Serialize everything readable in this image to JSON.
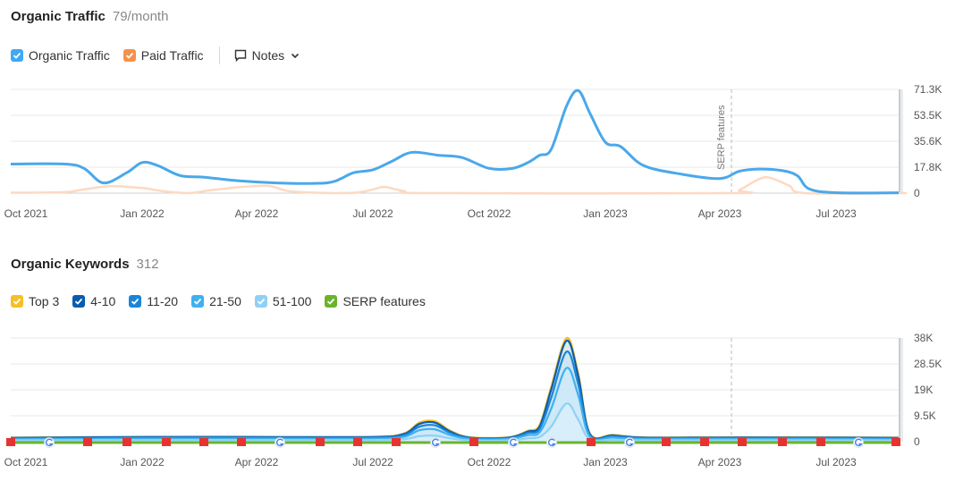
{
  "traffic": {
    "title": "Organic Traffic",
    "value": "79/month",
    "legend": [
      {
        "label": "Organic Traffic",
        "color": "#3fa9f5"
      },
      {
        "label": "Paid Traffic",
        "color": "#f7904a"
      }
    ],
    "notes_label": "Notes"
  },
  "keywords": {
    "title": "Organic Keywords",
    "value": "312",
    "legend": [
      {
        "label": "Top 3",
        "color": "#f6bf26"
      },
      {
        "label": "4-10",
        "color": "#0a5cad"
      },
      {
        "label": "11-20",
        "color": "#1a85d8"
      },
      {
        "label": "21-50",
        "color": "#3fb0f0"
      },
      {
        "label": "51-100",
        "color": "#8fd1f6"
      },
      {
        "label": "SERP features",
        "color": "#6ab42d"
      }
    ]
  },
  "chart_data": [
    {
      "type": "line",
      "title": "Organic Traffic",
      "x_ticks": [
        "Oct 2021",
        "Jan 2022",
        "Apr 2022",
        "Jul 2022",
        "Oct 2022",
        "Jan 2023",
        "Apr 2023",
        "Jul 2023"
      ],
      "y_ticks": [
        "71.3K",
        "53.5K",
        "35.6K",
        "17.8K",
        "0"
      ],
      "ylim": [
        0,
        71300
      ],
      "annotation": {
        "label": "SERP features",
        "x": 18.3
      },
      "series": [
        {
          "name": "Organic Traffic",
          "color": "#4aa8ea",
          "points": [
            [
              0,
              20000
            ],
            [
              1,
              20000
            ],
            [
              1.5,
              17000
            ],
            [
              2,
              7000
            ],
            [
              2.6,
              14000
            ],
            [
              3,
              21000
            ],
            [
              3.4,
              19000
            ],
            [
              4,
              12000
            ],
            [
              4.6,
              11000
            ],
            [
              5.5,
              8500
            ],
            [
              6.5,
              7000
            ],
            [
              7.5,
              6700
            ],
            [
              8,
              8000
            ],
            [
              8.5,
              14000
            ],
            [
              9,
              16000
            ],
            [
              9.5,
              22000
            ],
            [
              10,
              28000
            ],
            [
              10.7,
              26000
            ],
            [
              11.3,
              24500
            ],
            [
              12,
              17000
            ],
            [
              12.6,
              17000
            ],
            [
              13,
              21000
            ],
            [
              13.3,
              26000
            ],
            [
              13.6,
              30000
            ],
            [
              14,
              60000
            ],
            [
              14.3,
              70500
            ],
            [
              14.6,
              55000
            ],
            [
              15,
              35000
            ],
            [
              15.4,
              32000
            ],
            [
              16,
              19000
            ],
            [
              17,
              13000
            ],
            [
              18,
              10000
            ],
            [
              18.5,
              15000
            ],
            [
              19,
              16500
            ],
            [
              19.6,
              15500
            ],
            [
              20,
              12000
            ],
            [
              20.3,
              3000
            ],
            [
              21,
              300
            ],
            [
              23,
              200
            ]
          ]
        },
        {
          "name": "Paid Traffic",
          "color": "#fdd9c2",
          "points": [
            [
              0,
              300
            ],
            [
              1,
              700
            ],
            [
              1.6,
              3000
            ],
            [
              2.2,
              4800
            ],
            [
              3,
              3500
            ],
            [
              3.5,
              1500
            ],
            [
              4.2,
              0
            ],
            [
              4.8,
              2000
            ],
            [
              5.6,
              4200
            ],
            [
              6.3,
              5000
            ],
            [
              6.8,
              1500
            ],
            [
              7.5,
              300
            ],
            [
              8.5,
              200
            ],
            [
              9,
              2500
            ],
            [
              9.3,
              4200
            ],
            [
              9.8,
              1500
            ],
            [
              10.5,
              0
            ],
            [
              23,
              0
            ],
            [
              18.2,
              0
            ],
            [
              18.5,
              2000
            ],
            [
              19,
              9500
            ],
            [
              19.3,
              10500
            ],
            [
              19.8,
              5000
            ],
            [
              20.2,
              0
            ],
            [
              23,
              0
            ]
          ]
        }
      ]
    },
    {
      "type": "area",
      "title": "Organic Keywords",
      "x_ticks": [
        "Oct 2021",
        "Jan 2022",
        "Apr 2022",
        "Jul 2022",
        "Oct 2022",
        "Jan 2023",
        "Apr 2023",
        "Jul 2023"
      ],
      "y_ticks": [
        "38K",
        "28.5K",
        "19K",
        "9.5K",
        "0"
      ],
      "ylim": [
        0,
        38000
      ],
      "series": [
        {
          "name": "Top 3",
          "color": "#f6bf26",
          "points": [
            [
              0,
              1500
            ],
            [
              3,
              1800
            ],
            [
              6,
              1800
            ],
            [
              9,
              1800
            ],
            [
              9.8,
              3000
            ],
            [
              10.2,
              7000
            ],
            [
              10.6,
              7500
            ],
            [
              11,
              4000
            ],
            [
              11.5,
              1600
            ],
            [
              12.5,
              1600
            ],
            [
              13,
              4000
            ],
            [
              13.3,
              6000
            ],
            [
              13.6,
              20000
            ],
            [
              14,
              38000
            ],
            [
              14.3,
              25000
            ],
            [
              14.6,
              3000
            ],
            [
              15.2,
              2500
            ],
            [
              16,
              1600
            ],
            [
              18,
              1600
            ],
            [
              20,
              1600
            ],
            [
              23,
              1500
            ]
          ]
        },
        {
          "name": "4-10",
          "color": "#0a5cad",
          "points": [
            [
              0,
              1400
            ],
            [
              3,
              1700
            ],
            [
              6,
              1700
            ],
            [
              9,
              1700
            ],
            [
              9.8,
              2800
            ],
            [
              10.2,
              6500
            ],
            [
              10.6,
              7000
            ],
            [
              11,
              3700
            ],
            [
              11.5,
              1500
            ],
            [
              12.5,
              1500
            ],
            [
              13,
              3700
            ],
            [
              13.3,
              5500
            ],
            [
              13.6,
              19000
            ],
            [
              14,
              37000
            ],
            [
              14.3,
              24000
            ],
            [
              14.6,
              2800
            ],
            [
              15.2,
              2300
            ],
            [
              16,
              1500
            ],
            [
              18,
              1500
            ],
            [
              20,
              1500
            ],
            [
              23,
              1400
            ]
          ]
        },
        {
          "name": "11-20",
          "color": "#1a85d8",
          "points": [
            [
              0,
              1200
            ],
            [
              3,
              1500
            ],
            [
              6,
              1500
            ],
            [
              9,
              1500
            ],
            [
              9.8,
              2400
            ],
            [
              10.2,
              5500
            ],
            [
              10.6,
              6000
            ],
            [
              11,
              3200
            ],
            [
              11.5,
              1300
            ],
            [
              12.5,
              1300
            ],
            [
              13,
              3200
            ],
            [
              13.3,
              4600
            ],
            [
              13.6,
              16000
            ],
            [
              14,
              33000
            ],
            [
              14.3,
              21000
            ],
            [
              14.6,
              2400
            ],
            [
              15.2,
              2000
            ],
            [
              16,
              1300
            ],
            [
              18,
              1300
            ],
            [
              20,
              1300
            ],
            [
              23,
              1200
            ]
          ]
        },
        {
          "name": "21-50",
          "color": "#3fb0f0",
          "points": [
            [
              0,
              900
            ],
            [
              3,
              1100
            ],
            [
              6,
              1100
            ],
            [
              9,
              1100
            ],
            [
              9.8,
              1800
            ],
            [
              10.2,
              4200
            ],
            [
              10.6,
              4500
            ],
            [
              11,
              2400
            ],
            [
              11.5,
              1000
            ],
            [
              12.5,
              1000
            ],
            [
              13,
              2400
            ],
            [
              13.3,
              3400
            ],
            [
              13.6,
              12000
            ],
            [
              14,
              27000
            ],
            [
              14.3,
              17000
            ],
            [
              14.6,
              1800
            ],
            [
              15.2,
              1500
            ],
            [
              16,
              1000
            ],
            [
              18,
              1000
            ],
            [
              20,
              1000
            ],
            [
              23,
              900
            ]
          ]
        },
        {
          "name": "51-100",
          "color": "#8fd1f6",
          "points": [
            [
              0,
              500
            ],
            [
              3,
              600
            ],
            [
              6,
              600
            ],
            [
              9,
              600
            ],
            [
              9.8,
              900
            ],
            [
              10.2,
              2000
            ],
            [
              10.6,
              2200
            ],
            [
              11,
              1200
            ],
            [
              11.5,
              500
            ],
            [
              12.5,
              500
            ],
            [
              13,
              1200
            ],
            [
              13.3,
              1700
            ],
            [
              13.6,
              5500
            ],
            [
              14,
              14000
            ],
            [
              14.3,
              8000
            ],
            [
              14.6,
              900
            ],
            [
              15.2,
              700
            ],
            [
              16,
              500
            ],
            [
              18,
              500
            ],
            [
              20,
              500
            ],
            [
              23,
              500
            ]
          ]
        },
        {
          "name": "SERP features",
          "color": "#6ab42d",
          "points": [
            [
              0,
              0
            ],
            [
              23,
              0
            ]
          ]
        }
      ]
    }
  ]
}
